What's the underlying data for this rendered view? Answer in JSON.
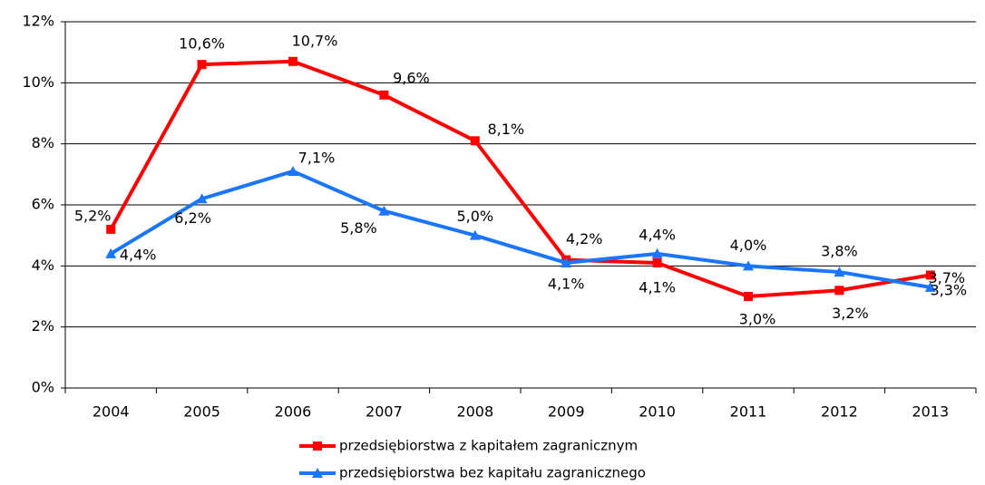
{
  "chart_data": {
    "type": "line",
    "categories": [
      "2004",
      "2005",
      "2006",
      "2007",
      "2008",
      "2009",
      "2010",
      "2011",
      "2012",
      "2013"
    ],
    "series": [
      {
        "name": "przedsiębiorstwa z kapitałem zagranicznym",
        "color": "#ff0000",
        "marker": "square",
        "values": [
          5.2,
          10.6,
          10.7,
          9.6,
          8.1,
          4.2,
          4.1,
          3.0,
          3.2,
          3.7
        ],
        "value_labels": [
          "5,2%",
          "10,6%",
          "10,7%",
          "9,6%",
          "8,1%",
          "4,2%",
          "4,1%",
          "3,0%",
          "3,2%",
          "3,7%"
        ]
      },
      {
        "name": "przedsiębiorstwa bez kapitału zagranicznego",
        "color": "#1a75ff",
        "marker": "triangle",
        "values": [
          4.4,
          6.2,
          7.1,
          5.8,
          5.0,
          4.1,
          4.4,
          4.0,
          3.8,
          3.3
        ],
        "value_labels": [
          "4,4%",
          "6,2%",
          "7,1%",
          "5,8%",
          "5,0%",
          "4,1%",
          "4,4%",
          "4,0%",
          "3,8%",
          "3,3%"
        ]
      }
    ],
    "ylim": [
      0,
      12
    ],
    "yticks": [
      {
        "value": 0,
        "label": "0%"
      },
      {
        "value": 2,
        "label": "2%"
      },
      {
        "value": 4,
        "label": "4%"
      },
      {
        "value": 6,
        "label": "6%"
      },
      {
        "value": 8,
        "label": "8%"
      },
      {
        "value": 10,
        "label": "10%"
      },
      {
        "value": 12,
        "label": "12%"
      }
    ],
    "grid": true,
    "legend": "bottom"
  }
}
